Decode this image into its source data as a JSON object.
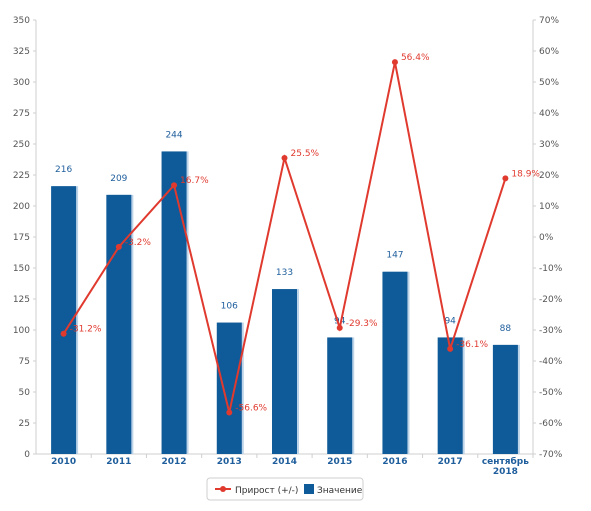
{
  "chart_data": {
    "type": "bar",
    "categories": [
      "2010",
      "2011",
      "2012",
      "2013",
      "2014",
      "2015",
      "2016",
      "2017",
      "сентябрь 2018"
    ],
    "category_lines": [
      [
        "2010"
      ],
      [
        "2011"
      ],
      [
        "2012"
      ],
      [
        "2013"
      ],
      [
        "2014"
      ],
      [
        "2015"
      ],
      [
        "2016"
      ],
      [
        "2017"
      ],
      [
        "сентябрь",
        "2018"
      ]
    ],
    "series": [
      {
        "name": "Значение",
        "type": "bar",
        "axis": "left",
        "color": "#0f5a98",
        "values": [
          216,
          209,
          244,
          106,
          133,
          94,
          147,
          94,
          88
        ],
        "labels": [
          "216",
          "209",
          "244",
          "106",
          "133",
          "94",
          "147",
          "94",
          "88"
        ]
      },
      {
        "name": "Прирост (+/-)",
        "type": "line",
        "axis": "right",
        "color": "#e03a2f",
        "values": [
          -31.2,
          -3.2,
          16.7,
          -56.6,
          25.5,
          -29.3,
          56.4,
          -36.1,
          18.9
        ],
        "labels": [
          "-31.2%",
          "-3.2%",
          "16.7%",
          "-56.6%",
          "25.5%",
          "-29.3%",
          "56.4%",
          "-36.1%",
          "18.9%"
        ]
      }
    ],
    "y_left": {
      "min": 0,
      "max": 350,
      "step": 25,
      "ticks": [
        "0",
        "25",
        "50",
        "75",
        "100",
        "125",
        "150",
        "175",
        "200",
        "225",
        "250",
        "275",
        "300",
        "325",
        "350"
      ]
    },
    "y_right": {
      "min": -70,
      "max": 70,
      "step": 10,
      "ticks": [
        "-70%",
        "-60%",
        "-50%",
        "-40%",
        "-30%",
        "-20%",
        "-10%",
        "0%",
        "10%",
        "20%",
        "30%",
        "40%",
        "50%",
        "60%",
        "70%"
      ]
    },
    "grid": false,
    "legend": {
      "position": "bottom-center"
    },
    "title": "",
    "xlabel": "",
    "ylabel": ""
  }
}
